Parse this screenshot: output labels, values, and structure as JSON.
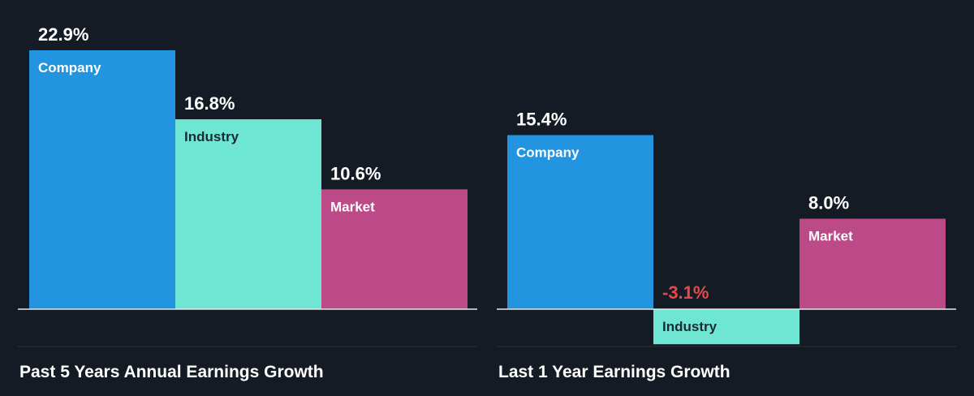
{
  "colors": {
    "background": "#151b24",
    "company": "#2394e0",
    "industry": "#6fe6d4",
    "market": "#bd4a88",
    "negative_text": "#e5484d",
    "label_light": "#ffffff",
    "label_dark": "#1c2a35",
    "axis": "#e8e8e8",
    "separator": "#2b323c"
  },
  "chart_data": [
    {
      "type": "bar",
      "title": "Past 5 Years Annual Earnings Growth",
      "categories": [
        "Company",
        "Industry",
        "Market"
      ],
      "values": [
        22.9,
        16.8,
        10.6
      ],
      "value_labels": [
        "22.9%",
        "16.8%",
        "10.6%"
      ],
      "unit": "%",
      "xlabel": "",
      "ylabel": "",
      "grid": false,
      "legend": "none"
    },
    {
      "type": "bar",
      "title": "Last 1 Year Earnings Growth",
      "categories": [
        "Company",
        "Industry",
        "Market"
      ],
      "values": [
        15.4,
        -3.1,
        8.0
      ],
      "value_labels": [
        "15.4%",
        "-3.1%",
        "8.0%"
      ],
      "unit": "%",
      "xlabel": "",
      "ylabel": "",
      "grid": false,
      "legend": "none"
    }
  ]
}
